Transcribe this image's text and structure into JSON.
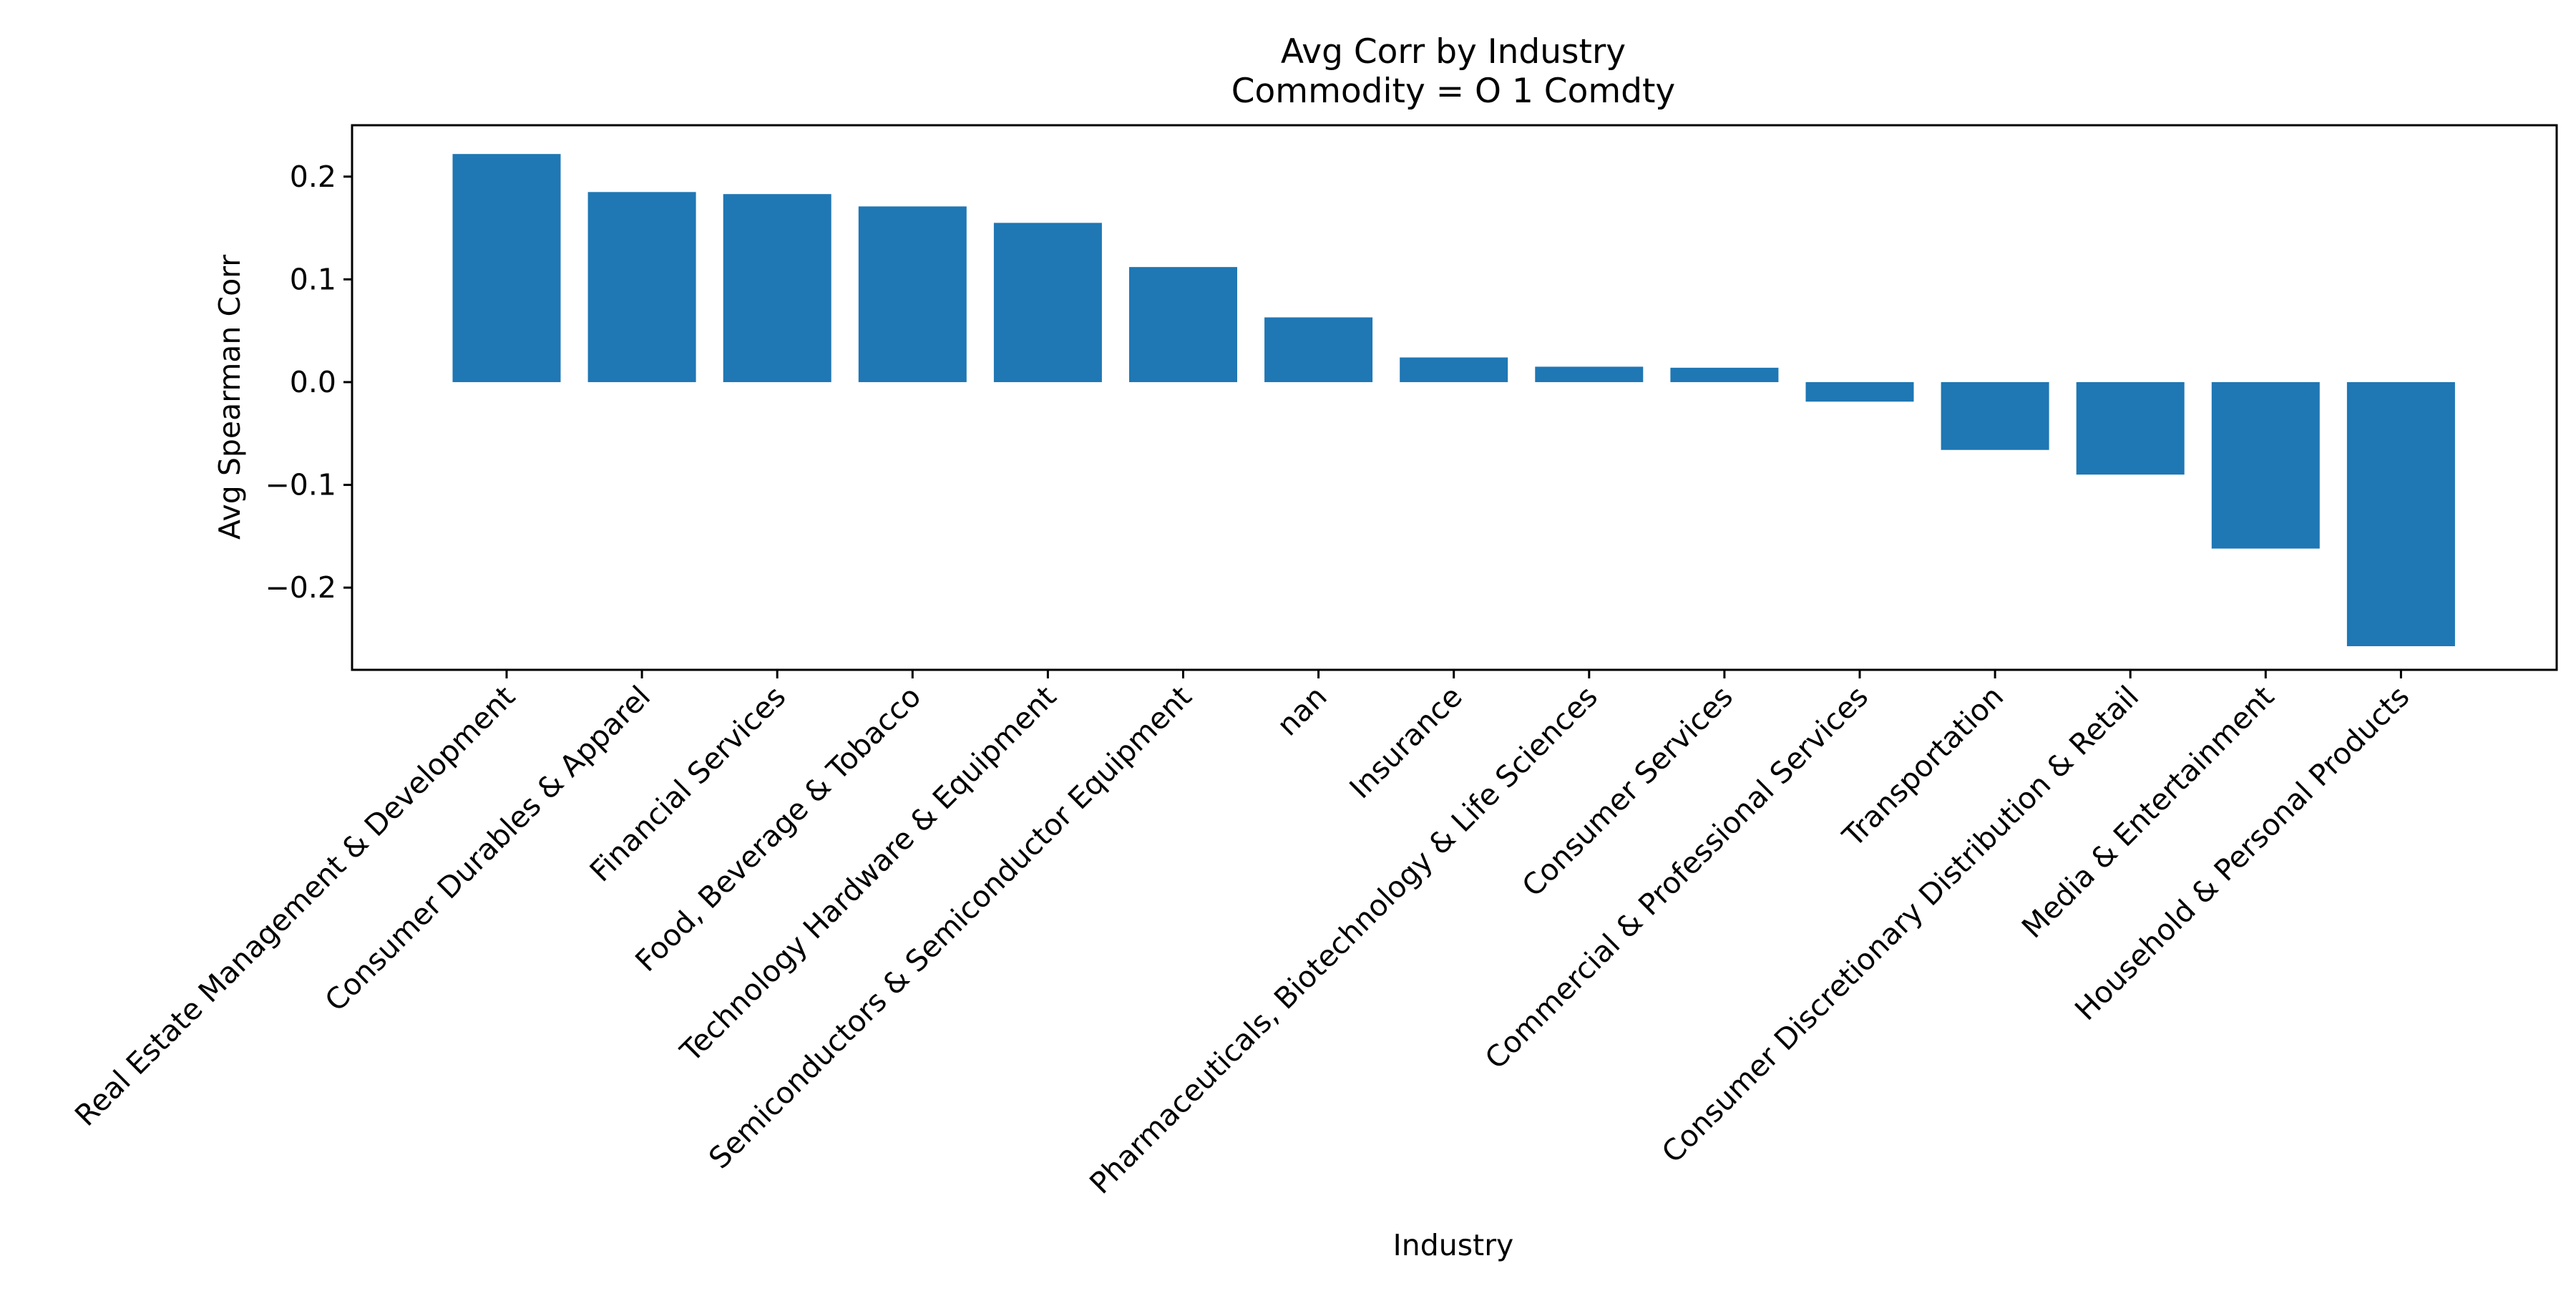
{
  "chart_data": {
    "type": "bar",
    "title": "Avg Corr by Industry",
    "subtitle": "Commodity = O 1 Comdty",
    "xlabel": "Industry",
    "ylabel": "Avg Spearman Corr",
    "ylim": [
      -0.28,
      0.25
    ],
    "yticks": [
      -0.2,
      -0.1,
      0.0,
      0.1,
      0.2
    ],
    "ytick_labels": [
      "−0.2",
      "−0.1",
      "0.0",
      "0.1",
      "0.2"
    ],
    "grid": false,
    "legend": "none",
    "bar_color": "#1f77b4",
    "categories": [
      "Real Estate Management & Development",
      "Consumer Durables & Apparel",
      "Financial Services",
      "Food, Beverage & Tobacco",
      "Technology Hardware & Equipment",
      "Semiconductors & Semiconductor Equipment",
      "nan",
      "Insurance",
      "Pharmaceuticals, Biotechnology & Life Sciences",
      "Consumer Services",
      "Commercial & Professional Services",
      "Transportation",
      "Consumer Discretionary Distribution & Retail",
      "Media & Entertainment",
      "Household & Personal Products"
    ],
    "values": [
      0.222,
      0.185,
      0.183,
      0.171,
      0.155,
      0.112,
      0.063,
      0.024,
      0.015,
      0.014,
      -0.019,
      -0.066,
      -0.09,
      -0.162,
      -0.257
    ]
  }
}
